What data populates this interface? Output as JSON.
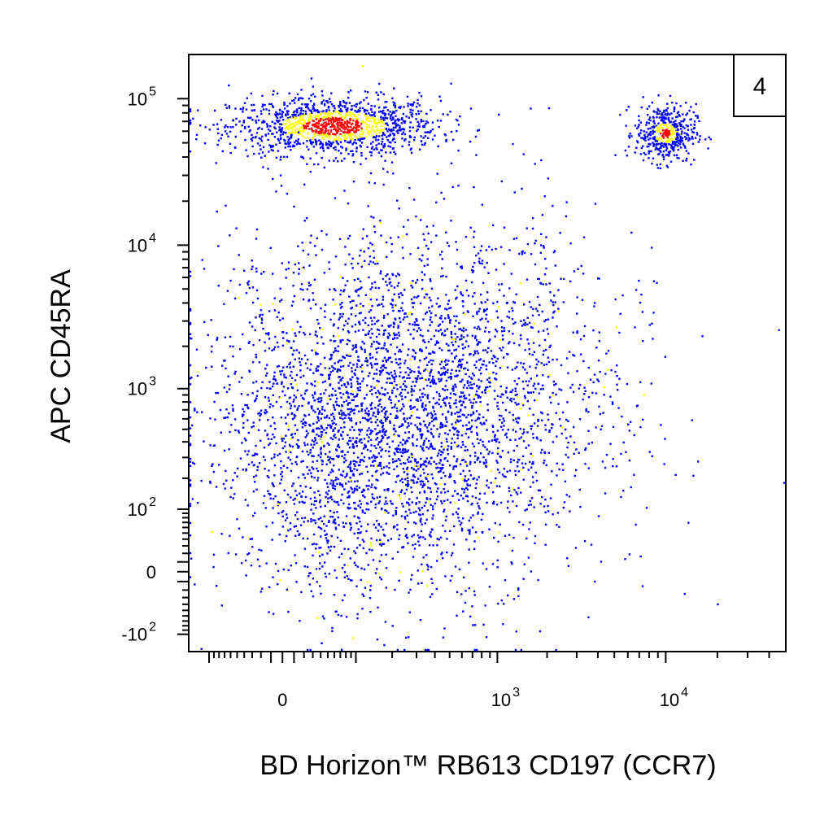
{
  "chart_data": {
    "type": "scatter",
    "xlabel": "BD Horizon™ RB613 CD197 (CCR7)",
    "ylabel": "APC  CD45RA",
    "x_scale": "biexponential",
    "y_scale": "biexponential",
    "xlim": [
      -150,
      50000
    ],
    "ylim": [
      -150,
      200000
    ],
    "x_ticks": [
      {
        "value": 0,
        "base": "0",
        "exp": ""
      },
      {
        "value": 1000,
        "base": "10",
        "exp": "3"
      },
      {
        "value": 10000,
        "base": "10",
        "exp": "4"
      }
    ],
    "y_ticks": [
      {
        "value": -100,
        "base": "-10",
        "exp": "2"
      },
      {
        "value": 0,
        "base": "0",
        "exp": ""
      },
      {
        "value": 100,
        "base": "10",
        "exp": "2"
      },
      {
        "value": 1000,
        "base": "10",
        "exp": "3"
      },
      {
        "value": 10000,
        "base": "10",
        "exp": "4"
      },
      {
        "value": 100000,
        "base": "10",
        "exp": "5"
      }
    ],
    "panel_label": "4",
    "grid": false,
    "legend": "none",
    "color_map": [
      "#0000ff",
      "#ffff00",
      "#ff0000"
    ],
    "populations": [
      {
        "x_center": 60,
        "y_center": 65000,
        "x_spread": 0.55,
        "y_spread": 0.18,
        "count": 1300,
        "density": "high"
      },
      {
        "x_center": 10000,
        "y_center": 58000,
        "x_spread": 0.16,
        "y_spread": 0.18,
        "count": 450,
        "density": "medium"
      },
      {
        "x_center": 300,
        "y_center": 800,
        "x_spread": 1.0,
        "y_spread": 1.1,
        "count": 3200,
        "density": "low"
      },
      {
        "x_center": 80,
        "y_center": 300,
        "x_spread": 0.7,
        "y_spread": 0.9,
        "count": 900,
        "density": "low"
      }
    ]
  }
}
